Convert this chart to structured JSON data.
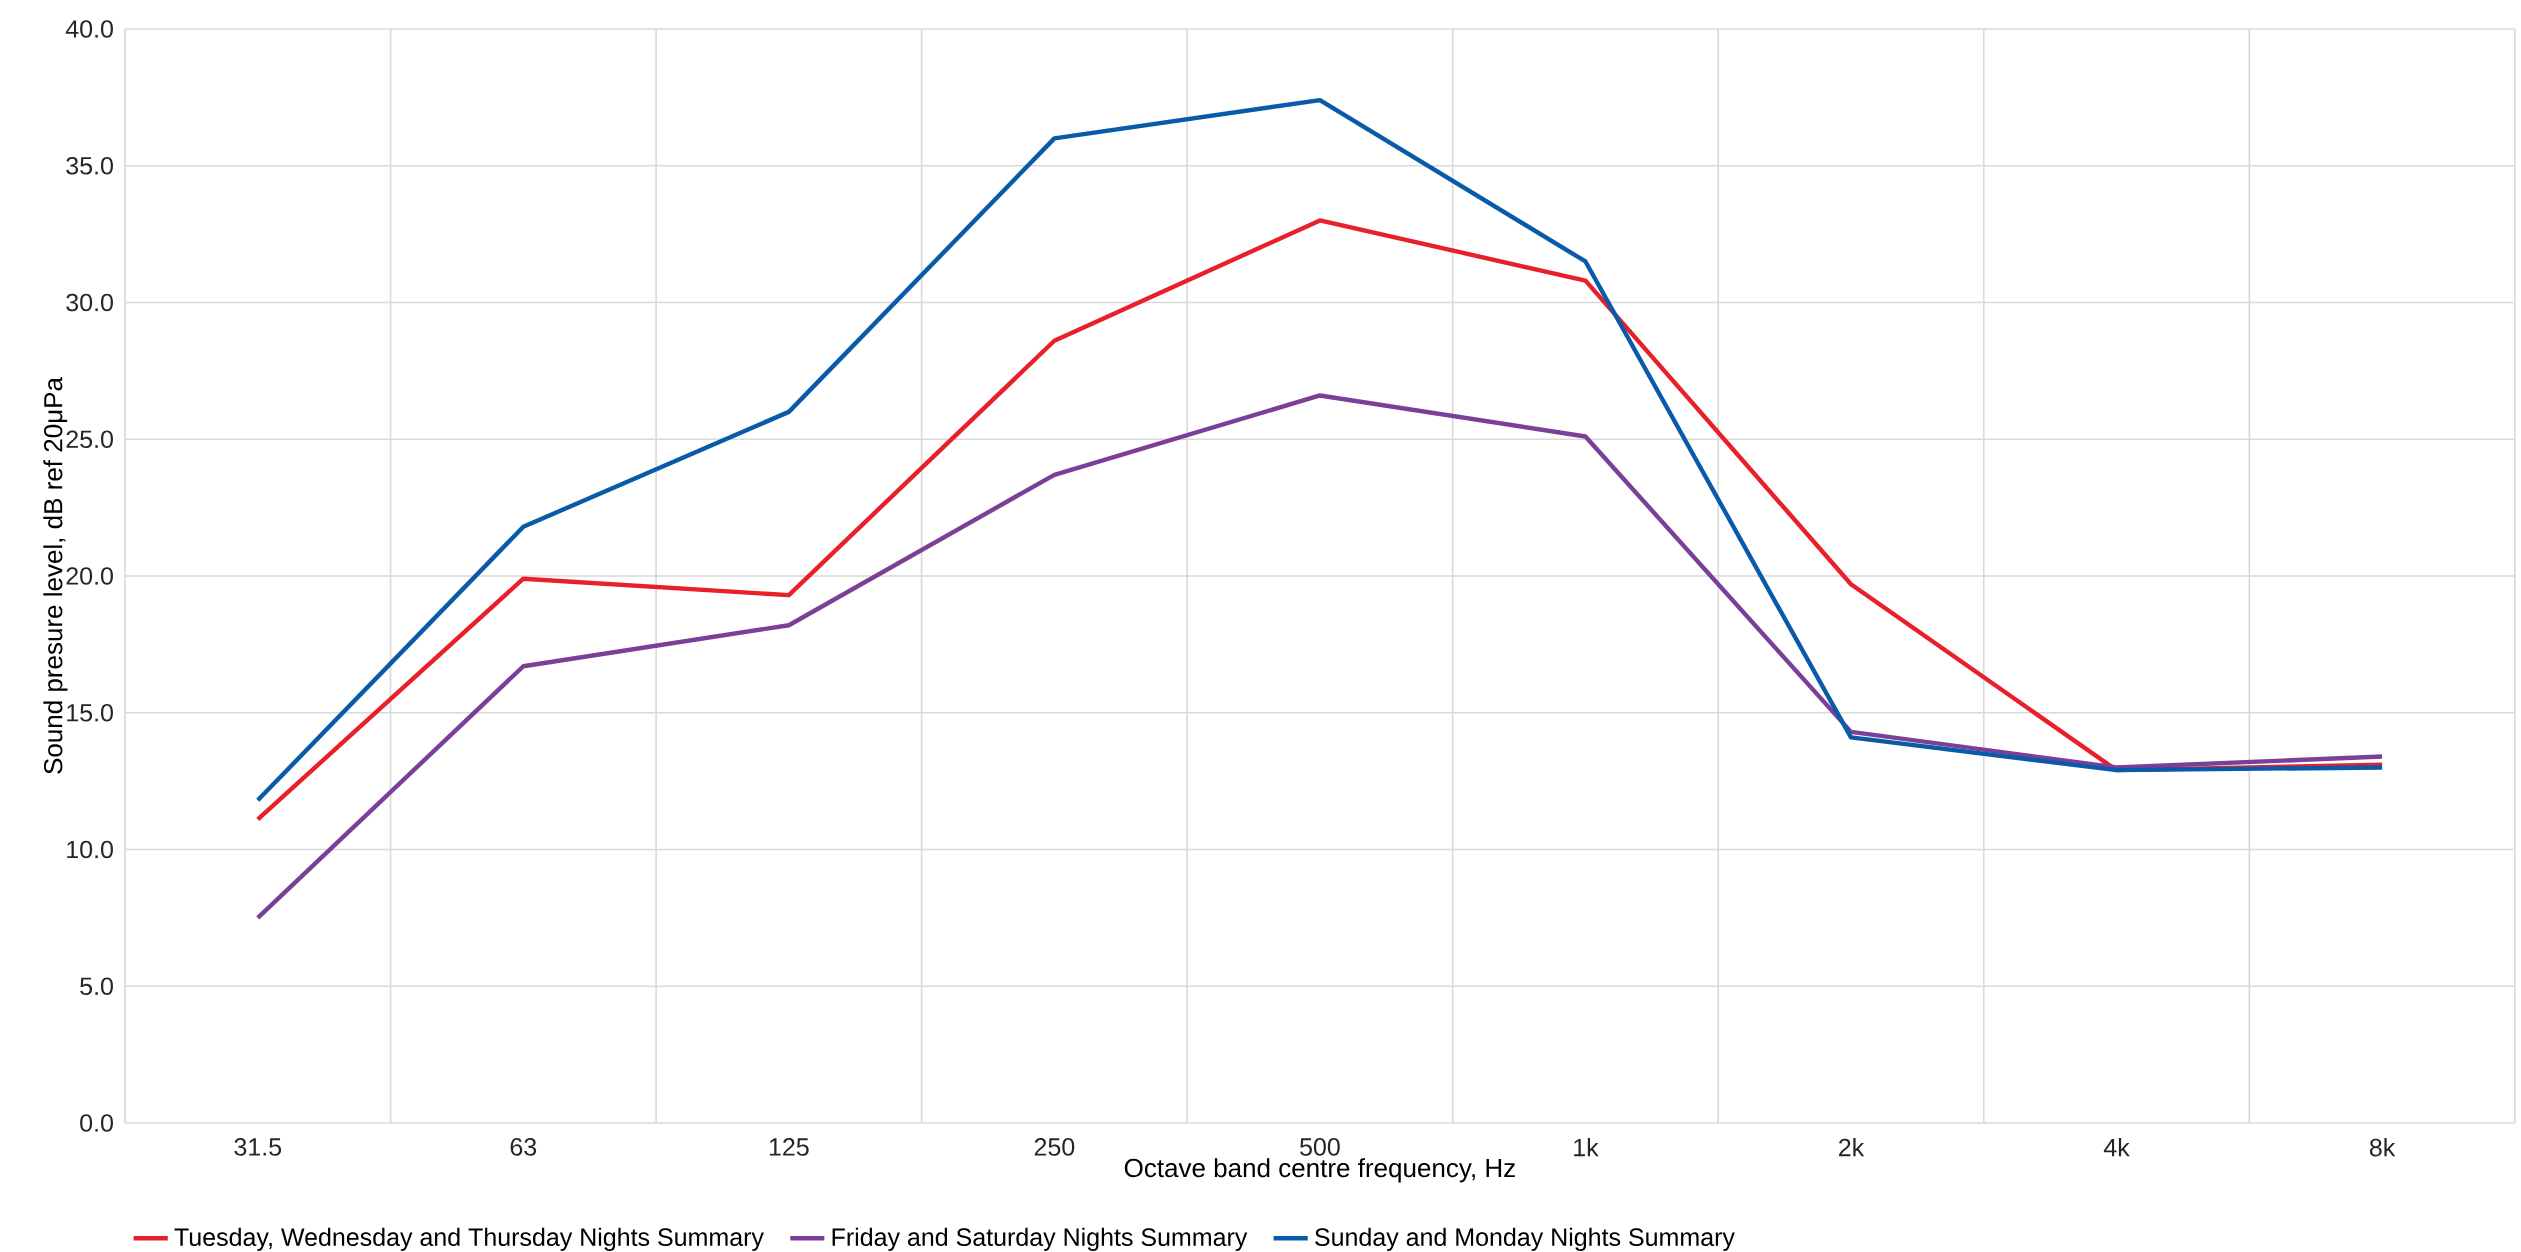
{
  "chart_data": {
    "type": "line",
    "xlabel": "Octave band centre frequency, Hz",
    "ylabel": "Sound presure level, dB ref 20μPa",
    "categories": [
      "31.5",
      "63",
      "125",
      "250",
      "500",
      "1k",
      "2k",
      "4k",
      "8k"
    ],
    "series": [
      {
        "name": "Tuesday, Wednesday and Thursday Nights Summary",
        "color": "#e8202a",
        "values": [
          11.1,
          19.9,
          19.3,
          28.6,
          33.0,
          30.8,
          19.7,
          12.9,
          13.1
        ]
      },
      {
        "name": "Friday and Saturday Nights Summary",
        "color": "#7b3f98",
        "values": [
          7.5,
          16.7,
          18.2,
          23.7,
          26.6,
          25.1,
          14.3,
          13.0,
          13.4
        ]
      },
      {
        "name": "Sunday and Monday Nights Summary",
        "color": "#0a5aaa",
        "values": [
          11.8,
          21.8,
          26.0,
          36.0,
          37.4,
          31.5,
          14.1,
          12.9,
          13.0
        ]
      }
    ],
    "ylim": [
      0,
      40
    ],
    "yticks": [
      {
        "value": 0,
        "label": "0.0"
      },
      {
        "value": 5,
        "label": "5.0"
      },
      {
        "value": 10,
        "label": "10.0"
      },
      {
        "value": 15,
        "label": "15.0"
      },
      {
        "value": 20,
        "label": "20.0"
      },
      {
        "value": 25,
        "label": "25.0"
      },
      {
        "value": 30,
        "label": "30.0"
      },
      {
        "value": 35,
        "label": "35.0"
      },
      {
        "value": 40,
        "label": "40.0"
      }
    ],
    "grid": true,
    "legend": "bottom",
    "marker": "none",
    "line_style": "solid"
  }
}
